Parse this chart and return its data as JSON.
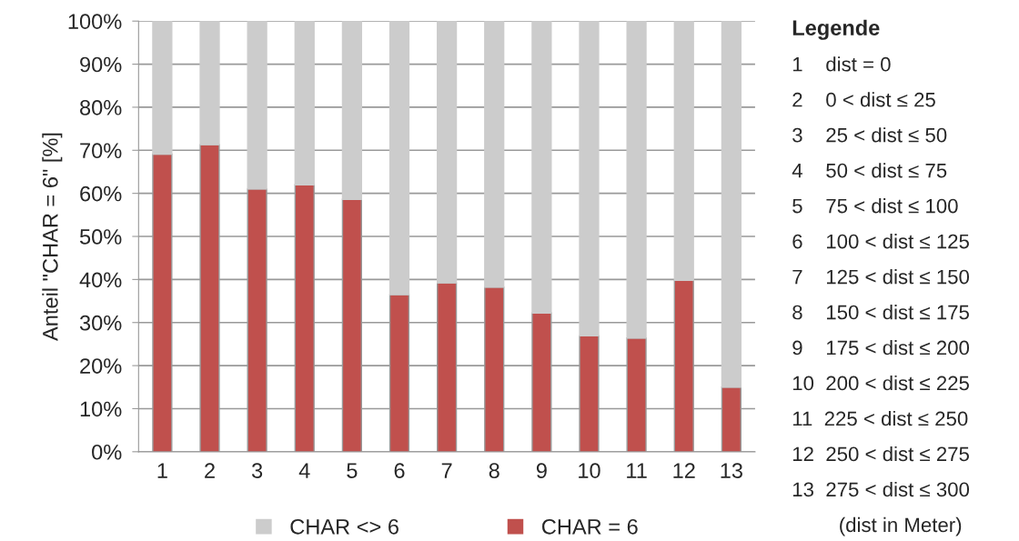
{
  "chart_data": {
    "type": "bar",
    "stacked": true,
    "ylabel": "Anteil \"CHAR = 6\" [%]",
    "categories": [
      "1",
      "2",
      "3",
      "4",
      "5",
      "6",
      "7",
      "8",
      "9",
      "10",
      "11",
      "12",
      "13"
    ],
    "series": [
      {
        "name": "CHAR = 6",
        "color": "#c0504d",
        "values": [
          69.1,
          71.3,
          61.0,
          62.0,
          58.6,
          36.5,
          39.2,
          38.2,
          32.2,
          26.9,
          26.4,
          39.8,
          15.0
        ]
      },
      {
        "name": "CHAR <> 6",
        "color": "#cccccc",
        "values": [
          30.9,
          28.7,
          39.0,
          38.0,
          41.4,
          63.5,
          60.8,
          61.8,
          67.8,
          73.1,
          73.6,
          60.2,
          85.0
        ]
      }
    ],
    "ylim": [
      0,
      100
    ],
    "yticks": [
      {
        "value": 0,
        "label": "0%"
      },
      {
        "value": 10,
        "label": "10%"
      },
      {
        "value": 20,
        "label": "20%"
      },
      {
        "value": 30,
        "label": "30%"
      },
      {
        "value": 40,
        "label": "40%"
      },
      {
        "value": 50,
        "label": "50%"
      },
      {
        "value": 60,
        "label": "60%"
      },
      {
        "value": 70,
        "label": "70%"
      },
      {
        "value": 80,
        "label": "80%"
      },
      {
        "value": 90,
        "label": "90%"
      },
      {
        "value": 100,
        "label": "100%"
      }
    ],
    "grid": "y",
    "legend": "bottom",
    "annotations": [
      "Legende",
      "1    dist = 0",
      "2    0 < dist ≤ 25",
      "3    25 < dist ≤ 50",
      "4    50 < dist ≤ 75",
      "5    75 < dist ≤ 100",
      "6    100 < dist ≤ 125",
      "7    125 < dist ≤ 150",
      "8    150 < dist ≤ 175",
      "9    175 < dist ≤ 200",
      "10  200 < dist ≤ 225",
      "11  225 < dist ≤ 250",
      "12  250 < dist ≤ 275",
      "13  275 < dist ≤ 300",
      "(dist in Meter)"
    ]
  }
}
